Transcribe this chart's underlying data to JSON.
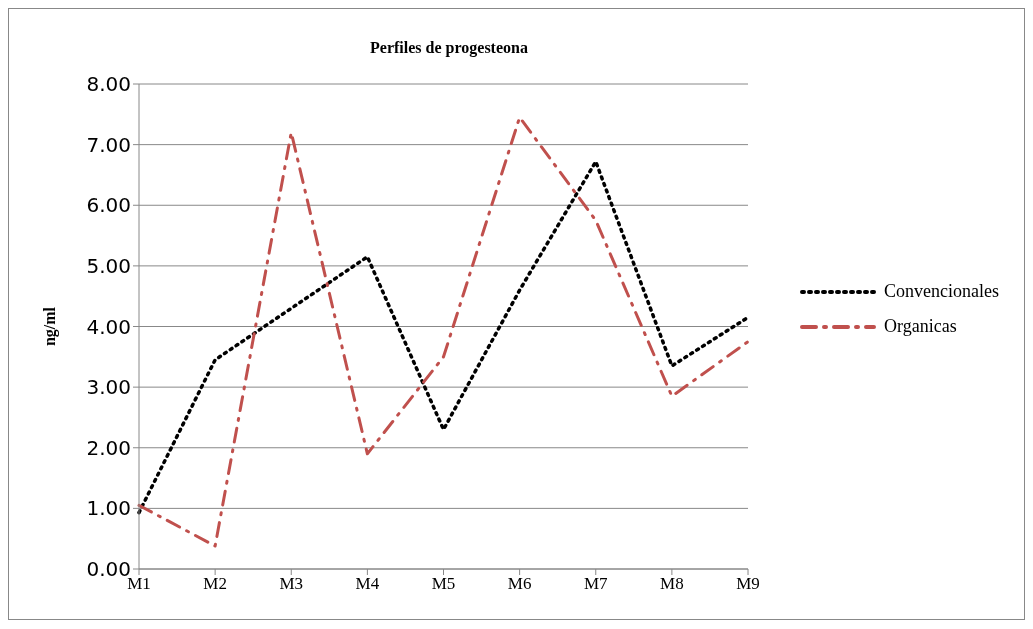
{
  "chart_data": {
    "type": "line",
    "title": "Perfiles de progesteona",
    "ylabel": "ng/ml",
    "categories": [
      "M1",
      "M2",
      "M3",
      "M4",
      "M5",
      "M6",
      "M7",
      "M8",
      "M9"
    ],
    "series": [
      {
        "name": "Convencionales",
        "color": "#000000",
        "line_style": "dotted",
        "values": [
          0.93,
          3.45,
          4.3,
          5.15,
          2.3,
          4.6,
          6.72,
          3.35,
          4.15
        ]
      },
      {
        "name": "Organicas",
        "color": "#c0504d",
        "line_style": "dashdot",
        "values": [
          1.05,
          0.38,
          7.2,
          1.9,
          3.5,
          7.45,
          5.75,
          2.85,
          3.75
        ]
      }
    ],
    "ylim": [
      0,
      8
    ],
    "yticks": [
      {
        "value": 0,
        "label": "0.00"
      },
      {
        "value": 1,
        "label": "1.00"
      },
      {
        "value": 2,
        "label": "2.00"
      },
      {
        "value": 3,
        "label": "3.00"
      },
      {
        "value": 4,
        "label": "4.00"
      },
      {
        "value": 5,
        "label": "5.00"
      },
      {
        "value": 6,
        "label": "6.00"
      },
      {
        "value": 7,
        "label": "7.00"
      },
      {
        "value": 8,
        "label": "8.00"
      }
    ],
    "grid": "y",
    "legend": "right",
    "marker": "none"
  }
}
